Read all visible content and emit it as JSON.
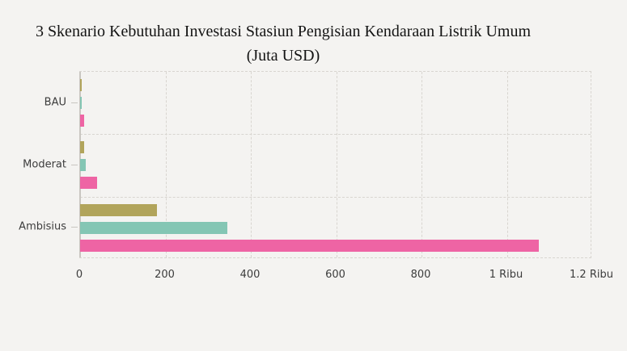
{
  "title": "3 Skenario Kebutuhan Investasi Stasiun Pengisian Kendaraan Listrik Umum (Juta USD)",
  "colors": {
    "background": "#f4f3f1",
    "grid": "#d8d5d0",
    "zero_line": "#c9c6c1",
    "title_text": "#141414",
    "tick_text": "#3c3c3c"
  },
  "chart_data": {
    "type": "bar",
    "orientation": "horizontal",
    "title": "3 Skenario Kebutuhan Investasi Stasiun Pengisian Kendaraan Listrik Umum (Juta USD)",
    "categories": [
      "BAU",
      "Moderat",
      "Ambisius"
    ],
    "series": [
      {
        "color": "#b1a45b",
        "values": [
          4,
          9,
          180
        ]
      },
      {
        "color": "#84c6b4",
        "values": [
          3,
          14,
          345
        ]
      },
      {
        "color": "#ee64a4",
        "values": [
          9,
          40,
          1075
        ]
      }
    ],
    "xlabel": "",
    "ylabel": "",
    "xlim": [
      0,
      1200
    ],
    "xticks": [
      {
        "value": 0,
        "label": "0"
      },
      {
        "value": 200,
        "label": "200"
      },
      {
        "value": 400,
        "label": "400"
      },
      {
        "value": 600,
        "label": "600"
      },
      {
        "value": 800,
        "label": "800"
      },
      {
        "value": 1000,
        "label": "1 Ribu"
      },
      {
        "value": 1200,
        "label": "1.2 Ribu"
      }
    ],
    "grid": "dashed",
    "legend": "none"
  }
}
